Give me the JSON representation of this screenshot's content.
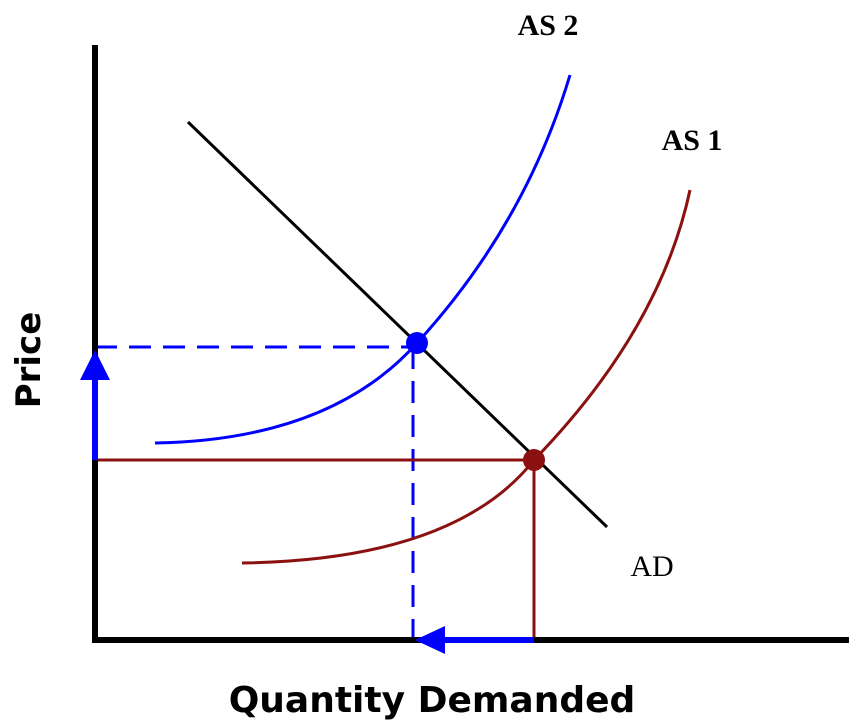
{
  "labels": {
    "as2": "AS 2",
    "as1": "AS 1",
    "ad": "AD",
    "y_axis": "Price",
    "x_axis": "Quantity Demanded"
  }
}
